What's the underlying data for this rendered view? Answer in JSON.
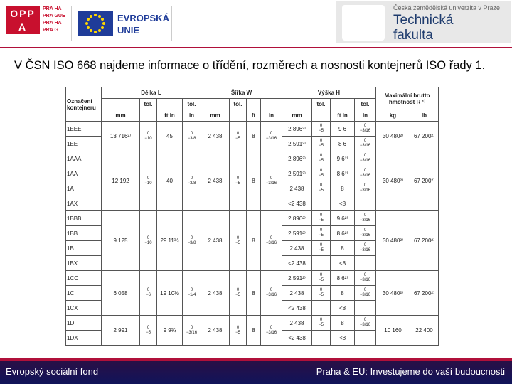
{
  "header": {
    "oppa": "OPP A",
    "praha_lines": [
      "PRA HA",
      "PRA GUE",
      "PRA HA",
      "PRA G"
    ],
    "eu": "EVROPSKÁ UNIE",
    "university": "Česká zemědělská univerzita v Praze",
    "faculty": "Technická fakulta"
  },
  "intro": "V ČSN ISO 668 najdeme informace o třídění, rozměrech a nosnosti kontejnerů ISO řady 1.",
  "table": {
    "code_header": "Označení kontejneru",
    "length_header": "Délka L",
    "width_header": "Šířka W",
    "height_header": "Výška H",
    "mass_header": "Maximální brutto hmotnost R ¹⁾",
    "tol_labels": [
      "tol.",
      "tol.",
      "tol.",
      "tol.",
      "tol."
    ],
    "units": [
      "mm",
      "ft in",
      "in",
      "mm",
      "ft",
      "in",
      "mm",
      "ft in",
      "in",
      "kg",
      "lb"
    ],
    "groups": [
      {
        "length_mm": "13 716²⁾",
        "length_tol": [
          "0",
          "−10"
        ],
        "length_ftin": "45",
        "length_in_tol": [
          "0",
          "−3/8"
        ],
        "width_mm": "2 438",
        "width_tol": [
          "0",
          "−5"
        ],
        "width_ft": "8",
        "width_in_tol": [
          "0",
          "−3/16"
        ],
        "mass_kg": "30 480²⁾",
        "mass_lb": "67 200²⁾",
        "rows": [
          {
            "code": "1EEE",
            "height_mm": "2 896²⁾",
            "height_tol": [
              "0",
              "−5"
            ],
            "height_ftin": "9 6",
            "height_in_tol": [
              "0",
              "−3/16"
            ]
          },
          {
            "code": "1EE",
            "height_mm": "2 591²⁾",
            "height_tol": [
              "0",
              "−5"
            ],
            "height_ftin": "8 6",
            "height_in_tol": [
              "0",
              "−3/16"
            ]
          }
        ]
      },
      {
        "length_mm": "12 192",
        "length_tol": [
          "0",
          "−10"
        ],
        "length_ftin": "40",
        "length_in_tol": [
          "0",
          "−3/8"
        ],
        "width_mm": "2 438",
        "width_tol": [
          "0",
          "−5"
        ],
        "width_ft": "8",
        "width_in_tol": [
          "0",
          "−3/16"
        ],
        "mass_kg": "30 480²⁾",
        "mass_lb": "67 200²⁾",
        "rows": [
          {
            "code": "1AAA",
            "height_mm": "2 896²⁾",
            "height_tol": [
              "0",
              "−5"
            ],
            "height_ftin": "9 6²⁾",
            "height_in_tol": [
              "0",
              "−3/16"
            ]
          },
          {
            "code": "1AA",
            "height_mm": "2 591²⁾",
            "height_tol": [
              "0",
              "−5"
            ],
            "height_ftin": "8 6²⁾",
            "height_in_tol": [
              "0",
              "−3/16"
            ]
          },
          {
            "code": "1A",
            "height_mm": "2 438",
            "height_tol": [
              "0",
              "−5"
            ],
            "height_ftin": "8",
            "height_in_tol": [
              "0",
              "−3/16"
            ]
          },
          {
            "code": "1AX",
            "height_mm": "<2 438",
            "height_ftin": "<8"
          }
        ]
      },
      {
        "length_mm": "9 125",
        "length_tol": [
          "0",
          "−10"
        ],
        "length_ftin": "29 11¼",
        "length_in_tol": [
          "0",
          "−3/8"
        ],
        "width_mm": "2 438",
        "width_tol": [
          "0",
          "−5"
        ],
        "width_ft": "8",
        "width_in_tol": [
          "0",
          "−3/16"
        ],
        "mass_kg": "30 480²⁾",
        "mass_lb": "67 200²⁾",
        "rows": [
          {
            "code": "1BBB",
            "height_mm": "2 896²⁾",
            "height_tol": [
              "0",
              "−5"
            ],
            "height_ftin": "9 6²⁾",
            "height_in_tol": [
              "0",
              "−3/16"
            ]
          },
          {
            "code": "1BB",
            "height_mm": "2 591²⁾",
            "height_tol": [
              "0",
              "−5"
            ],
            "height_ftin": "8 6²⁾",
            "height_in_tol": [
              "0",
              "−3/16"
            ]
          },
          {
            "code": "1B",
            "height_mm": "2 438",
            "height_tol": [
              "0",
              "−5"
            ],
            "height_ftin": "8",
            "height_in_tol": [
              "0",
              "−3/16"
            ]
          },
          {
            "code": "1BX",
            "height_mm": "<2 438",
            "height_ftin": "<8"
          }
        ]
      },
      {
        "length_mm": "6 058",
        "length_tol": [
          "0",
          "−6"
        ],
        "length_ftin": "19 10½",
        "length_in_tol": [
          "0",
          "−1/4"
        ],
        "width_mm": "2 438",
        "width_tol": [
          "0",
          "−5"
        ],
        "width_ft": "8",
        "width_in_tol": [
          "0",
          "−3/16"
        ],
        "mass_kg": "30 480²⁾",
        "mass_lb": "67 200²⁾",
        "rows": [
          {
            "code": "1CC",
            "height_mm": "2 591²⁾",
            "height_tol": [
              "0",
              "−5"
            ],
            "height_ftin": "8 6²⁾",
            "height_in_tol": [
              "0",
              "−3/16"
            ]
          },
          {
            "code": "1C",
            "height_mm": "2 438",
            "height_tol": [
              "0",
              "−5"
            ],
            "height_ftin": "8",
            "height_in_tol": [
              "0",
              "−3/16"
            ]
          },
          {
            "code": "1CX",
            "height_mm": "<2 438",
            "height_ftin": "<8"
          }
        ]
      },
      {
        "length_mm": "2 991",
        "length_tol": [
          "0",
          "−5"
        ],
        "length_ftin": "9 9¾",
        "length_in_tol": [
          "0",
          "−3/16"
        ],
        "width_mm": "2 438",
        "width_tol": [
          "0",
          "−5"
        ],
        "width_ft": "8",
        "width_in_tol": [
          "0",
          "−3/16"
        ],
        "mass_kg": "10 160",
        "mass_lb": "22 400",
        "rows": [
          {
            "code": "1D",
            "height_mm": "2 438",
            "height_tol": [
              "0",
              "−5"
            ],
            "height_ftin": "8",
            "height_in_tol": [
              "0",
              "−3/16"
            ]
          },
          {
            "code": "1DX",
            "height_mm": "<2 438",
            "height_ftin": "<8"
          }
        ]
      }
    ]
  },
  "footer": {
    "left": "Evropský sociální fond",
    "right": "Praha & EU: Investujeme do vaší budoucnosti"
  }
}
